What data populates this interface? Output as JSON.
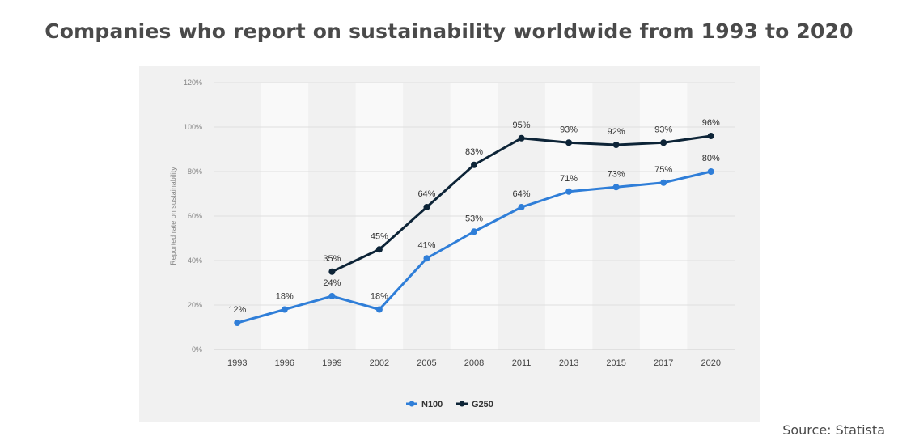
{
  "title": "Companies who report on sustainability worldwide from 1993 to 2020",
  "source": "Source: Statista",
  "chart_data": {
    "type": "line",
    "title": "Companies who report on sustainability worldwide from 1993 to 2020",
    "ylabel": "Reported rate on sustainability",
    "xlabel": "",
    "categories": [
      "1993",
      "1996",
      "1999",
      "2002",
      "2005",
      "2008",
      "2011",
      "2013",
      "2015",
      "2017",
      "2020"
    ],
    "ylim": [
      0,
      120
    ],
    "yticks": [
      "0%",
      "20%",
      "40%",
      "60%",
      "80%",
      "100%",
      "120%"
    ],
    "grid": true,
    "legend_position": "bottom-center",
    "series": [
      {
        "name": "N100",
        "color": "#2f7ed8",
        "values": [
          12,
          18,
          24,
          18,
          41,
          53,
          64,
          71,
          73,
          75,
          80
        ],
        "labels": [
          "12%",
          "18%",
          "24%",
          "18%",
          "41%",
          "53%",
          "64%",
          "71%",
          "73%",
          "75%",
          "80%"
        ]
      },
      {
        "name": "G250",
        "color": "#0d2437",
        "values": [
          null,
          null,
          35,
          45,
          64,
          83,
          95,
          93,
          92,
          93,
          96
        ],
        "labels": [
          null,
          null,
          "35%",
          "45%",
          "64%",
          "83%",
          "95%",
          "93%",
          "92%",
          "93%",
          "96%"
        ]
      }
    ]
  }
}
